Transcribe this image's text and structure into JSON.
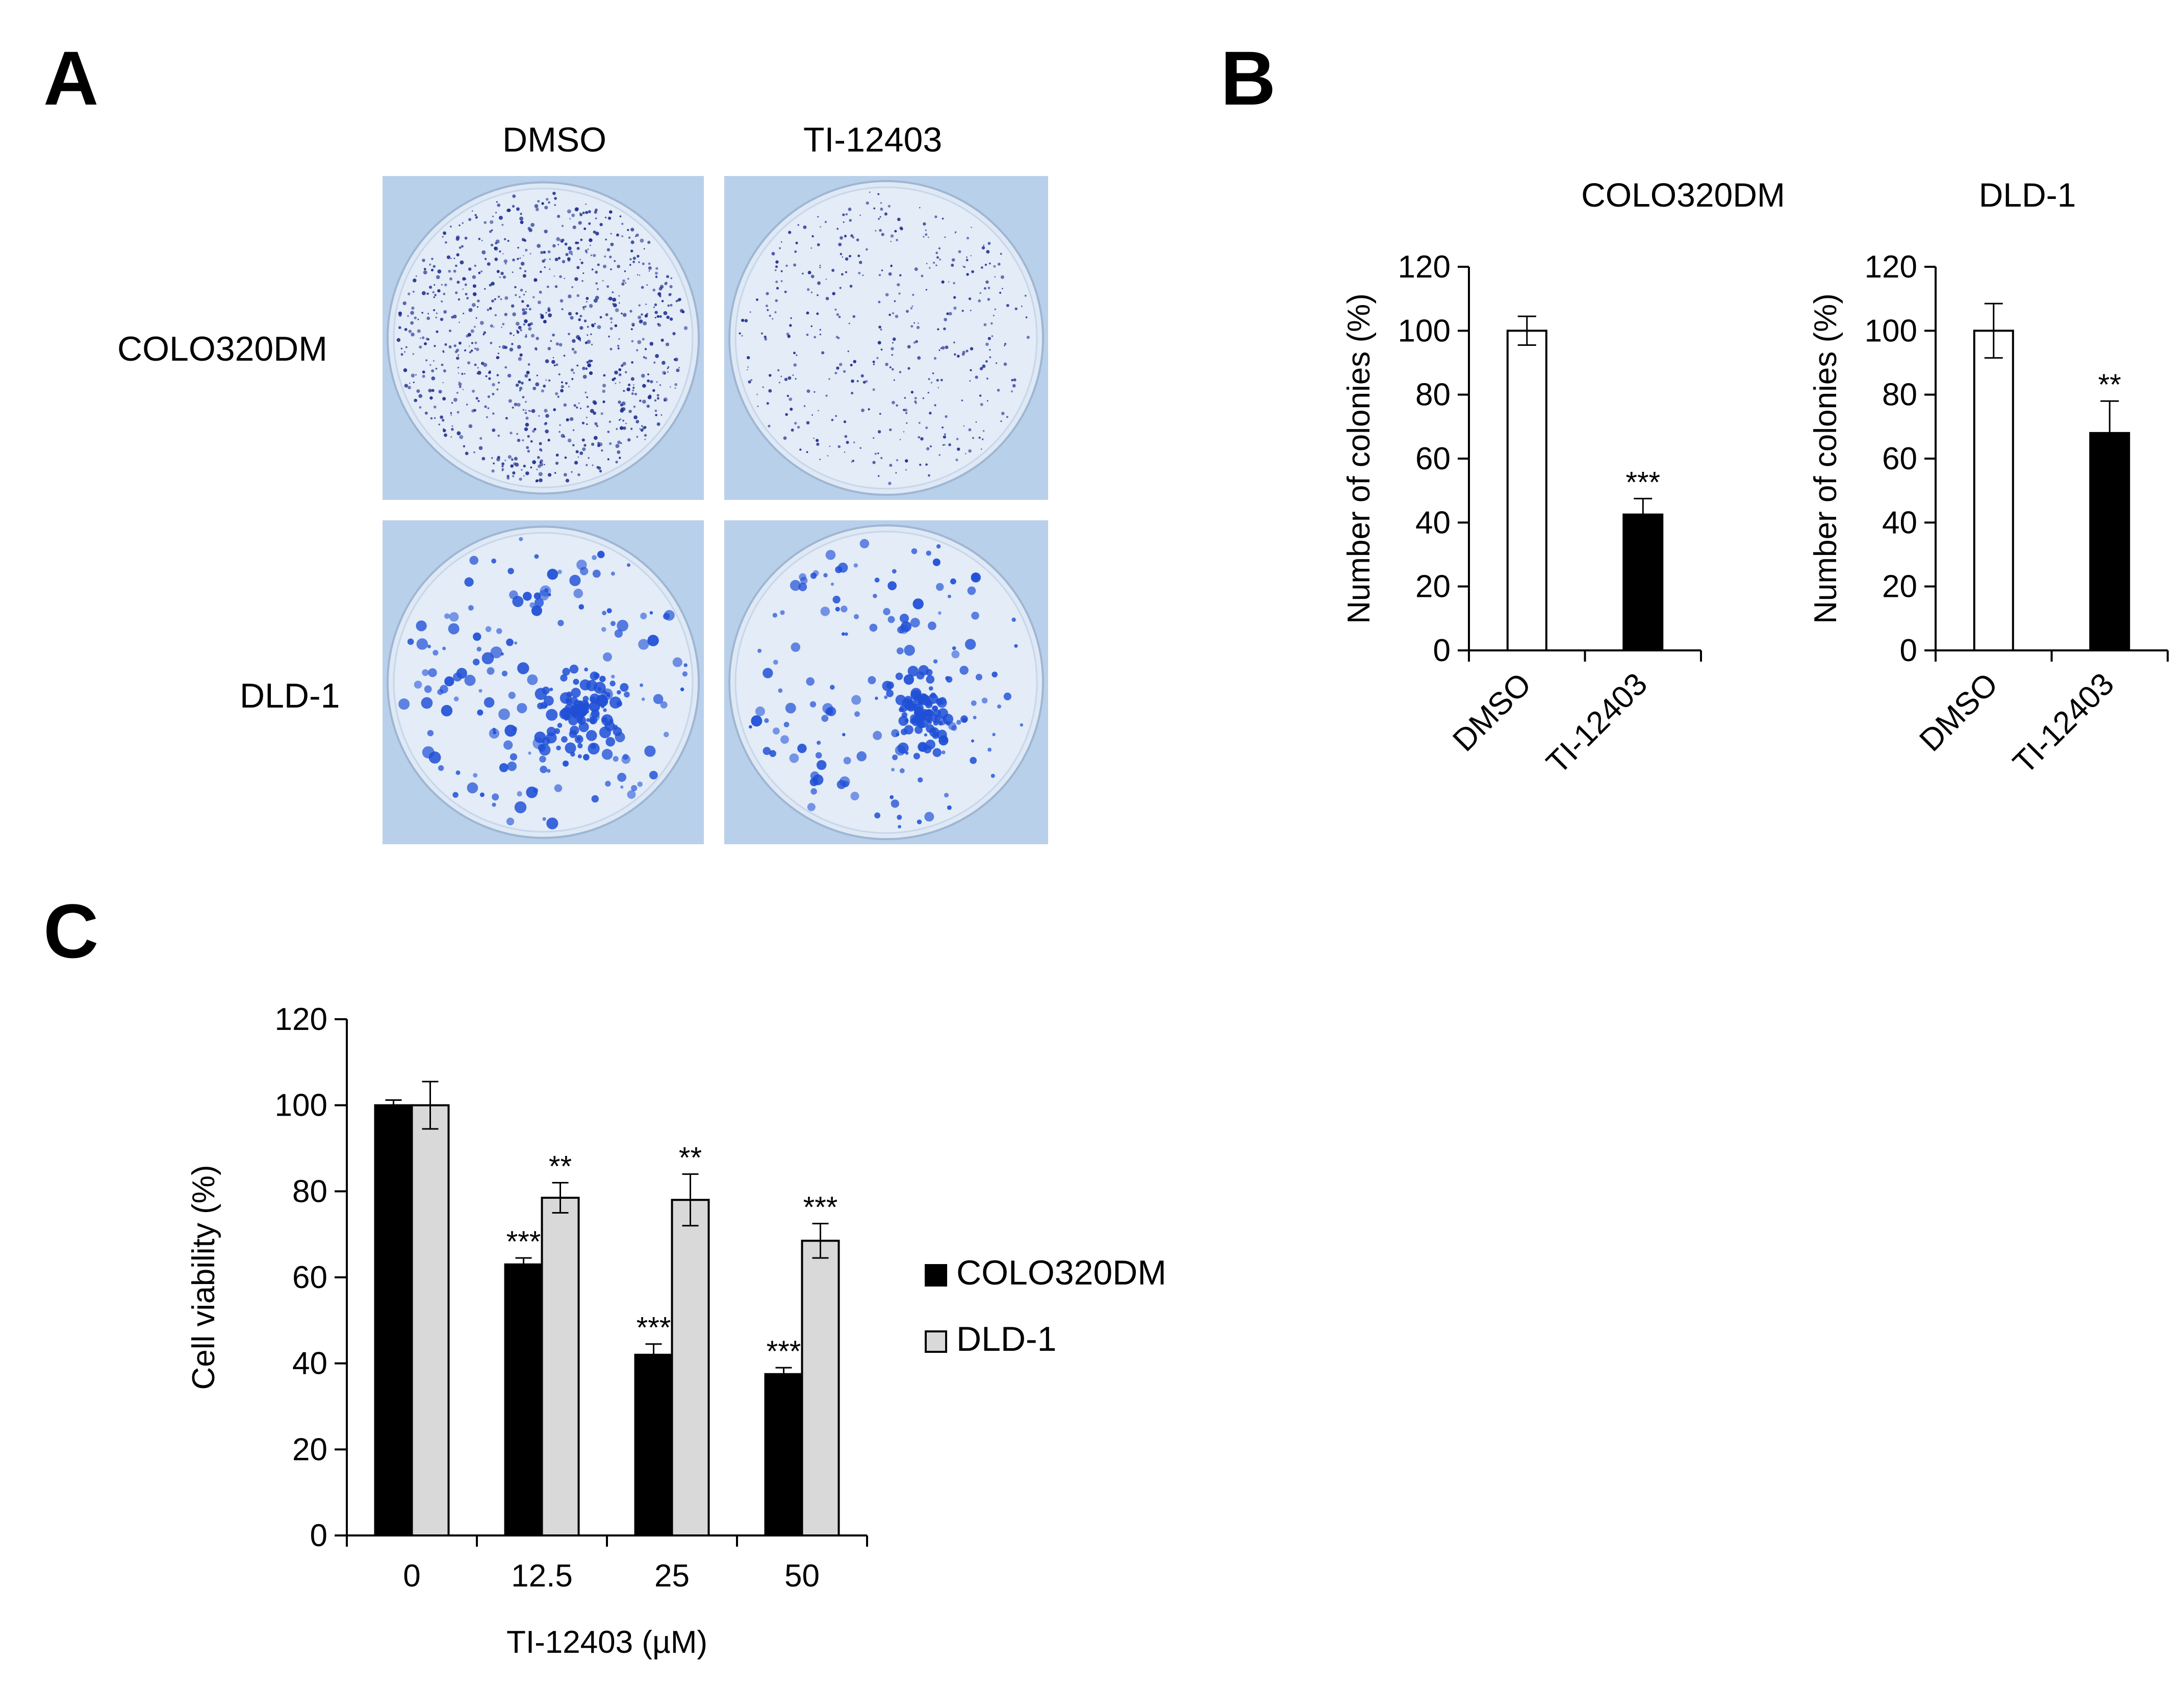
{
  "panels": {
    "a": "A",
    "b": "B",
    "c": "C"
  },
  "panel_a": {
    "columns": [
      "DMSO",
      "TI-12403"
    ],
    "rows": [
      "COLO320DM",
      "DLD-1"
    ],
    "colors": {
      "background": "#b9d0ea",
      "colo_colony": "#1c2a8c",
      "dld_colony": "#1f4fd6"
    }
  },
  "chart_data": [
    {
      "type": "bar",
      "title": "COLO320DM",
      "categories": [
        "DMSO",
        "TI-12403"
      ],
      "values": [
        100,
        42.5
      ],
      "errors": [
        4.5,
        5
      ],
      "significance": [
        "",
        "***"
      ],
      "fills": [
        "#ffffff",
        "#000000"
      ],
      "xlabel": "",
      "ylabel": "Number of colonies (%)",
      "ylim": [
        0,
        120
      ],
      "yticks": [
        0,
        20,
        40,
        60,
        80,
        100,
        120
      ],
      "grid": false
    },
    {
      "type": "bar",
      "title": "DLD-1",
      "categories": [
        "DMSO",
        "TI-12403"
      ],
      "values": [
        100,
        68
      ],
      "errors": [
        8.5,
        10
      ],
      "significance": [
        "",
        "**"
      ],
      "fills": [
        "#ffffff",
        "#000000"
      ],
      "xlabel": "",
      "ylabel": "Number of colonies (%)",
      "ylim": [
        0,
        120
      ],
      "yticks": [
        0,
        20,
        40,
        60,
        80,
        100,
        120
      ],
      "grid": false
    },
    {
      "type": "bar",
      "title": "",
      "categories": [
        "0",
        "12.5",
        "25",
        "50"
      ],
      "series": [
        {
          "name": "COLO320DM",
          "values": [
            100,
            63,
            42,
            37.5
          ],
          "errors": [
            1.2,
            1.5,
            2.5,
            1.5
          ],
          "significance": [
            "",
            "***",
            "***",
            "***"
          ],
          "color": "#000000"
        },
        {
          "name": "DLD-1",
          "values": [
            100,
            78.5,
            78,
            68.5
          ],
          "errors": [
            5.5,
            3.5,
            6,
            4
          ],
          "significance": [
            "",
            "**",
            "**",
            "***"
          ],
          "color": "#d9d9d9"
        }
      ],
      "xlabel": "TI-12403 (µM)",
      "ylabel": "Cell viability (%)",
      "ylim": [
        0,
        120
      ],
      "yticks": [
        0,
        20,
        40,
        60,
        80,
        100,
        120
      ],
      "legend": "right",
      "grid": false
    }
  ]
}
